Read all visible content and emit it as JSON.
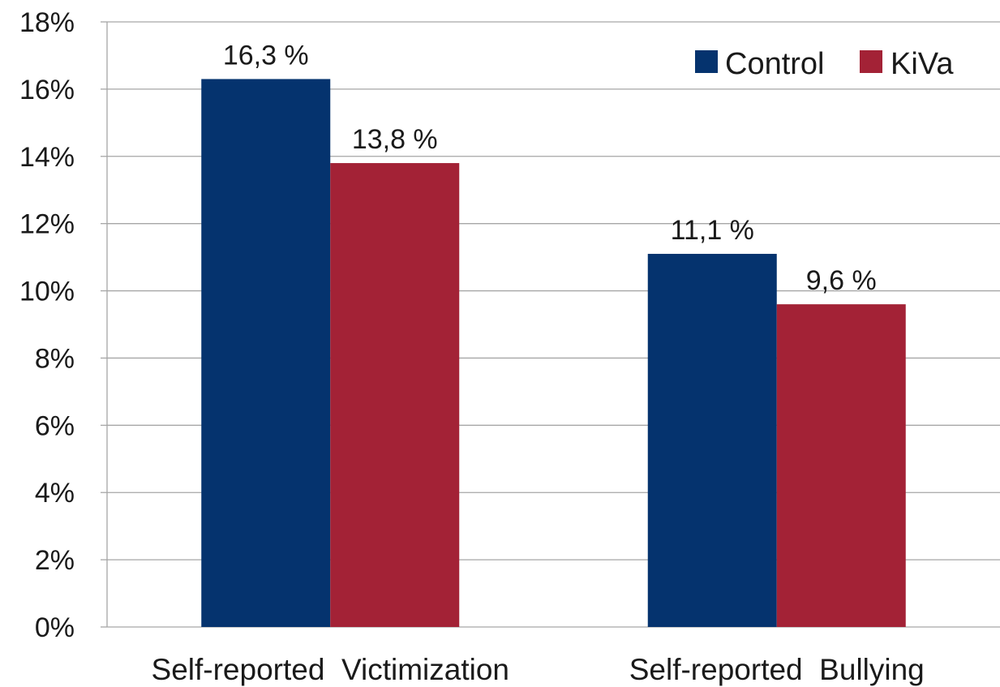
{
  "chart_data": {
    "type": "bar",
    "categories": [
      "Self-reported  Victimization",
      "Self-reported  Bullying"
    ],
    "series": [
      {
        "name": "Control",
        "color": "#05336e",
        "values": [
          16.3,
          11.1
        ],
        "labels": [
          "16,3 %",
          "11,1 %"
        ]
      },
      {
        "name": "KiVa",
        "color": "#a32236",
        "values": [
          13.8,
          9.6
        ],
        "labels": [
          "13,8 %",
          "9,6 %"
        ]
      }
    ],
    "ylim": [
      0,
      18
    ],
    "yticks": [
      0,
      2,
      4,
      6,
      8,
      10,
      12,
      14,
      16,
      18
    ],
    "ytick_labels": [
      "0%",
      "2%",
      "4%",
      "6%",
      "8%",
      "10%",
      "12%",
      "14%",
      "16%",
      "18%"
    ],
    "grid": true,
    "legend_position": "top-right",
    "title": "",
    "xlabel": "",
    "ylabel": ""
  }
}
